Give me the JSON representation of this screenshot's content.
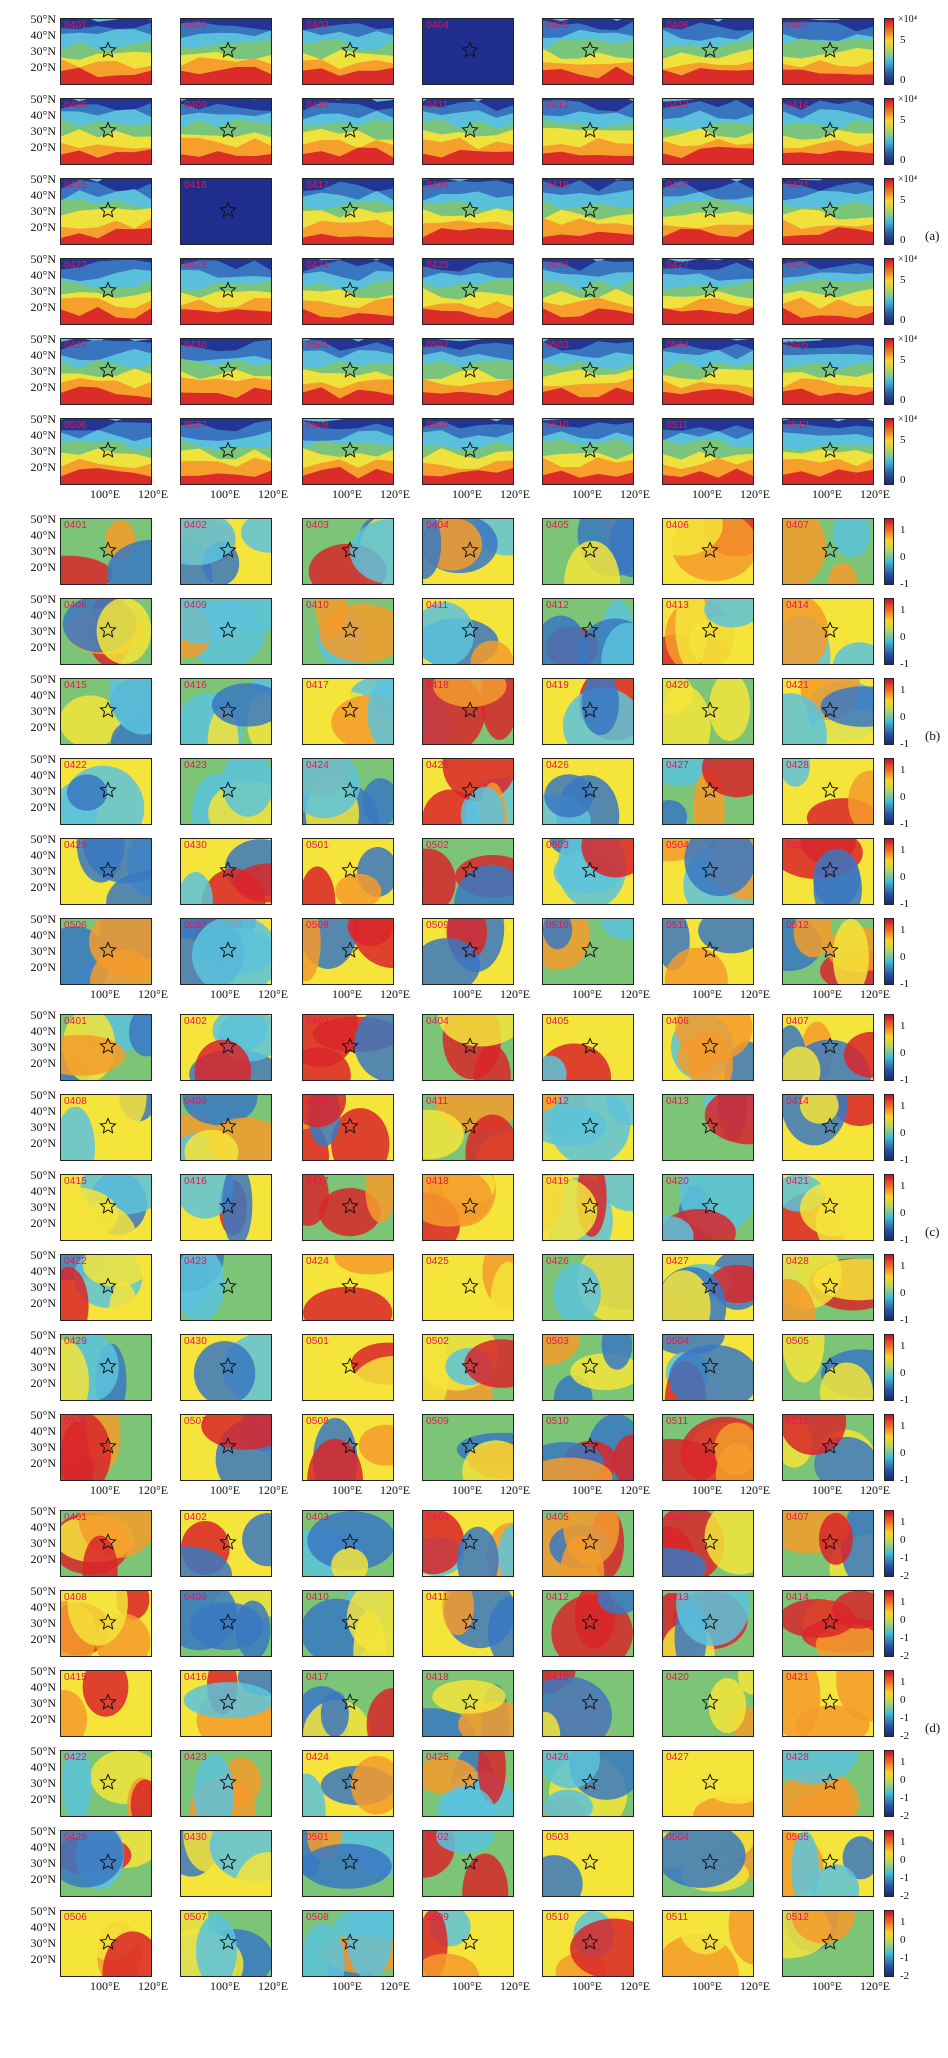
{
  "panels": [
    {
      "label": "(a)",
      "colorbar": {
        "ticks": [
          "5",
          "0"
        ],
        "exponent": "×10⁴",
        "colors": [
          "#c8102e",
          "#f06a26",
          "#fbd62c",
          "#a8d36b",
          "#3db8d9",
          "#2b56a8",
          "#1a2a7a"
        ]
      },
      "rows": [
        [
          "0401",
          "0402",
          "0403",
          "0404",
          "0405",
          "0406",
          "0407"
        ],
        [
          "0408",
          "0409",
          "0410",
          "0411",
          "0412",
          "0413",
          "0414"
        ],
        [
          "0415",
          "0416",
          "0417",
          "0418",
          "0419",
          "0420",
          "0421"
        ],
        [
          "0422",
          "0423",
          "0424",
          "0425",
          "0426",
          "0427",
          "0428"
        ],
        [
          "0429",
          "0430",
          "0501",
          "0502",
          "0503",
          "0504",
          "0505"
        ],
        [
          "0506",
          "0507",
          "0508",
          "0509",
          "0510",
          "0511",
          "0512"
        ]
      ]
    },
    {
      "label": "(b)",
      "colorbar": {
        "ticks": [
          "1",
          "0",
          "-1"
        ],
        "exponent": "",
        "colors": [
          "#c8102e",
          "#f06a26",
          "#fbd62c",
          "#a8d36b",
          "#3db8d9",
          "#2b56a8",
          "#1a2a7a"
        ]
      },
      "rows": [
        [
          "0401",
          "0402",
          "0403",
          "0404",
          "0405",
          "0406",
          "0407"
        ],
        [
          "0408",
          "0409",
          "0410",
          "0411",
          "0412",
          "0413",
          "0414"
        ],
        [
          "0415",
          "0416",
          "0417",
          "0418",
          "0419",
          "0420",
          "0421"
        ],
        [
          "0422",
          "0423",
          "0424",
          "0425",
          "0426",
          "0427",
          "0428"
        ],
        [
          "0429",
          "0430",
          "0501",
          "0502",
          "0503",
          "0504",
          "0505"
        ],
        [
          "0506",
          "0507",
          "0508",
          "0509",
          "0510",
          "0511",
          "0512"
        ]
      ]
    },
    {
      "label": "(c)",
      "colorbar": {
        "ticks": [
          "1",
          "0",
          "-1"
        ],
        "exponent": "",
        "colors": [
          "#c8102e",
          "#f06a26",
          "#fbd62c",
          "#a8d36b",
          "#3db8d9",
          "#2b56a8",
          "#1a2a7a"
        ]
      },
      "rows": [
        [
          "0401",
          "0402",
          "0403",
          "0404",
          "0405",
          "0406",
          "0407"
        ],
        [
          "0408",
          "0409",
          "0410",
          "0411",
          "0412",
          "0413",
          "0414"
        ],
        [
          "0415",
          "0416",
          "0417",
          "0418",
          "0419",
          "0420",
          "0421"
        ],
        [
          "0422",
          "0423",
          "0424",
          "0425",
          "0426",
          "0427",
          "0428"
        ],
        [
          "0429",
          "0430",
          "0501",
          "0502",
          "0503",
          "0504",
          "0505"
        ],
        [
          "0506",
          "0507",
          "0508",
          "0509",
          "0510",
          "0511",
          "0512"
        ]
      ]
    },
    {
      "label": "(d)",
      "colorbar": {
        "ticks": [
          "1",
          "0",
          "-1",
          "-2"
        ],
        "exponent": "",
        "colors": [
          "#c8102e",
          "#f06a26",
          "#fbd62c",
          "#a8d36b",
          "#3db8d9",
          "#2b56a8",
          "#1a2a7a"
        ]
      },
      "rows": [
        [
          "0401",
          "0402",
          "0403",
          "0404",
          "0405",
          "0406",
          "0407"
        ],
        [
          "0408",
          "0409",
          "0410",
          "0411",
          "0412",
          "0413",
          "0414"
        ],
        [
          "0415",
          "0416",
          "0417",
          "0418",
          "0419",
          "0420",
          "0421"
        ],
        [
          "0422",
          "0423",
          "0424",
          "0425",
          "0426",
          "0427",
          "0428"
        ],
        [
          "0429",
          "0430",
          "0501",
          "0502",
          "0503",
          "0504",
          "0505"
        ],
        [
          "0506",
          "0507",
          "0508",
          "0509",
          "0510",
          "0511",
          "0512"
        ]
      ]
    }
  ],
  "y_tick_labels": [
    "50°N",
    "40°N",
    "30°N",
    "20°N"
  ],
  "x_tick_labels": [
    "100°E",
    "120°E"
  ],
  "palette": {
    "dark_blue": "#1f2d8f",
    "blue": "#3a78c2",
    "cyan": "#5cc3dc",
    "green": "#7cc576",
    "yellow": "#f5e43a",
    "orange": "#f59b2b",
    "red": "#d9262a",
    "date_color": "#e0194e"
  }
}
